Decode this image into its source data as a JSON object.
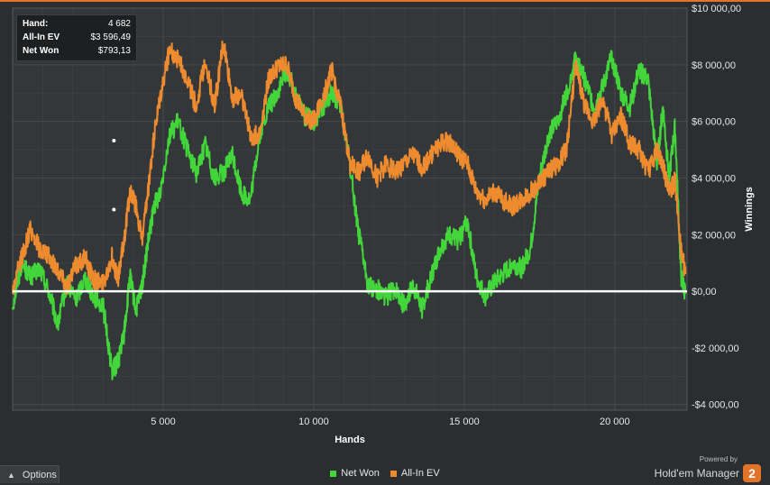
{
  "colors": {
    "background": "#2b2e31",
    "plot_background": "#343739",
    "grid": "#4a4d50",
    "net_won": "#43d63a",
    "all_in_ev": "#ee8b2f",
    "zero_line": "#ffffff",
    "top_accent": "#e4732a"
  },
  "info": {
    "hand_label": "Hand:",
    "hand_value": "4 682",
    "ev_label": "All-In EV",
    "ev_value": "$3 596,49",
    "won_label": "Net Won",
    "won_value": "$793,13"
  },
  "options": {
    "label": "Options",
    "icon": "chevron-up-icon"
  },
  "brand": {
    "powered": "Powered by",
    "name": "Hold'em Manager",
    "logo_text": "2"
  },
  "chart_data": {
    "type": "line",
    "xlabel": "Hands",
    "ylabel": "Winnings",
    "xlim": [
      0,
      22400
    ],
    "ylim": [
      -4200,
      10000
    ],
    "x_ticks": [
      5000,
      10000,
      15000,
      20000
    ],
    "x_tick_labels": [
      "5 000",
      "10 000",
      "15 000",
      "20 000"
    ],
    "y_ticks": [
      -4000,
      -2000,
      0,
      2000,
      4000,
      6000,
      8000,
      10000
    ],
    "y_tick_labels": [
      "-$4 000,00",
      "-$2 000,00",
      "$0,00",
      "$2 000,00",
      "$4 000,00",
      "$6 000,00",
      "$8 000,00",
      "$10 000,00"
    ],
    "grid": true,
    "legend_position": "bottom-center",
    "highlight_x": 4682,
    "series": [
      {
        "name": "Net Won",
        "color": "#43d63a",
        "x": [
          0,
          300,
          600,
          900,
          1200,
          1500,
          1800,
          2100,
          2400,
          2700,
          3000,
          3300,
          3500,
          3700,
          3900,
          4100,
          4300,
          4500,
          4700,
          4900,
          5200,
          5500,
          5800,
          6100,
          6400,
          6700,
          7000,
          7300,
          7600,
          7900,
          8200,
          8500,
          8800,
          9100,
          9400,
          9700,
          10000,
          10300,
          10600,
          10900,
          11200,
          11500,
          11800,
          12100,
          12400,
          12700,
          13000,
          13300,
          13600,
          13900,
          14200,
          14500,
          14800,
          15100,
          15400,
          15700,
          16000,
          16300,
          16600,
          16900,
          17200,
          17500,
          17800,
          18100,
          18400,
          18700,
          19000,
          19300,
          19600,
          19900,
          20200,
          20500,
          20800,
          21100,
          21400,
          21600,
          21800,
          22000,
          22200,
          22350
        ],
        "y": [
          -500,
          1000,
          500,
          800,
          0,
          -1200,
          300,
          -300,
          500,
          -200,
          -500,
          -2800,
          -2500,
          -1500,
          500,
          -700,
          200,
          1700,
          3000,
          3500,
          5500,
          6000,
          5000,
          4200,
          5200,
          4000,
          4200,
          4800,
          3500,
          3200,
          5500,
          6500,
          7000,
          7800,
          7000,
          6200,
          6000,
          6500,
          7000,
          6500,
          4500,
          2000,
          200,
          100,
          -200,
          100,
          -500,
          200,
          -600,
          500,
          1500,
          2000,
          1800,
          2500,
          500,
          -200,
          300,
          600,
          1000,
          800,
          1500,
          4000,
          5500,
          6000,
          7000,
          8200,
          7500,
          6500,
          7200,
          8300,
          7000,
          6500,
          7800,
          7500,
          4500,
          6500,
          4000,
          5800,
          500,
          -100
        ]
      },
      {
        "name": "All-In EV",
        "color": "#ee8b2f",
        "x": [
          0,
          300,
          600,
          900,
          1200,
          1500,
          1800,
          2100,
          2400,
          2700,
          3000,
          3300,
          3500,
          3700,
          3900,
          4100,
          4300,
          4500,
          4700,
          4900,
          5200,
          5500,
          5800,
          6100,
          6400,
          6700,
          7000,
          7300,
          7600,
          7900,
          8200,
          8500,
          8800,
          9100,
          9400,
          9700,
          10000,
          10300,
          10600,
          10900,
          11200,
          11500,
          11800,
          12100,
          12400,
          12700,
          13000,
          13300,
          13600,
          13900,
          14200,
          14500,
          14800,
          15100,
          15400,
          15700,
          16000,
          16300,
          16600,
          16900,
          17200,
          17500,
          17800,
          18100,
          18400,
          18700,
          19000,
          19300,
          19600,
          19900,
          20200,
          20500,
          20800,
          21100,
          21400,
          21600,
          21800,
          22000,
          22200,
          22350
        ],
        "y": [
          0,
          1200,
          2200,
          1500,
          1200,
          800,
          200,
          900,
          1200,
          400,
          300,
          1200,
          400,
          1800,
          3500,
          3000,
          1800,
          3500,
          5500,
          6800,
          8500,
          8200,
          7500,
          6500,
          8200,
          6500,
          8800,
          6800,
          7000,
          5500,
          5500,
          7500,
          7900,
          8000,
          6800,
          6200,
          6000,
          6800,
          7800,
          6500,
          4500,
          4200,
          4800,
          4000,
          4500,
          4200,
          4500,
          4800,
          4400,
          4800,
          5200,
          5300,
          4800,
          4500,
          3500,
          3200,
          3500,
          3200,
          3000,
          3200,
          3500,
          3800,
          4200,
          4500,
          5000,
          8000,
          6500,
          6000,
          6800,
          5500,
          6200,
          5200,
          5000,
          4200,
          5000,
          4500,
          3500,
          3900,
          1500,
          600
        ]
      }
    ]
  }
}
